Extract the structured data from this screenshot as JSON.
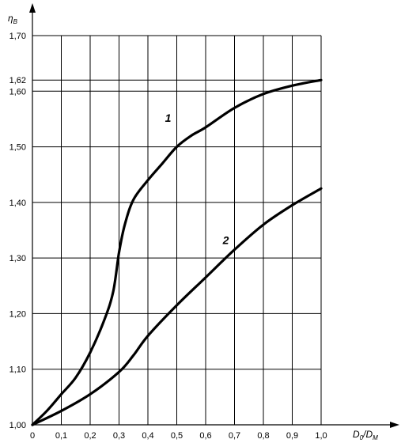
{
  "chart_data": {
    "type": "line",
    "ylabel_main": "η",
    "ylabel_sub": "B",
    "xlabel_main": "D",
    "xlabel_sub1": "0",
    "xlabel_sep": "/D",
    "xlabel_sub2": "M",
    "xlim": [
      0,
      1.0
    ],
    "ylim": [
      1.0,
      1.7
    ],
    "grid": true,
    "x_ticks": [
      {
        "value": 0,
        "label": "0"
      },
      {
        "value": 0.1,
        "label": "0,1"
      },
      {
        "value": 0.2,
        "label": "0,2"
      },
      {
        "value": 0.3,
        "label": "0,3"
      },
      {
        "value": 0.4,
        "label": "0,4"
      },
      {
        "value": 0.5,
        "label": "0,5"
      },
      {
        "value": 0.6,
        "label": "0,6"
      },
      {
        "value": 0.7,
        "label": "0,7"
      },
      {
        "value": 0.8,
        "label": "0,8"
      },
      {
        "value": 0.9,
        "label": "0,9"
      },
      {
        "value": 1.0,
        "label": "1,0"
      }
    ],
    "y_ticks": [
      {
        "value": 1.0,
        "label": "1,00"
      },
      {
        "value": 1.1,
        "label": "1,10"
      },
      {
        "value": 1.2,
        "label": "1,20"
      },
      {
        "value": 1.3,
        "label": "1,30"
      },
      {
        "value": 1.4,
        "label": "1,40"
      },
      {
        "value": 1.5,
        "label": "1,50"
      },
      {
        "value": 1.6,
        "label": "1,60"
      },
      {
        "value": 1.62,
        "label": "1,62"
      },
      {
        "value": 1.7,
        "label": "1,70"
      }
    ],
    "series": [
      {
        "name": "1",
        "label_at": [
          0.47,
          1.545
        ],
        "points": [
          [
            0.0,
            1.0
          ],
          [
            0.05,
            1.025
          ],
          [
            0.1,
            1.055
          ],
          [
            0.15,
            1.085
          ],
          [
            0.2,
            1.13
          ],
          [
            0.25,
            1.19
          ],
          [
            0.28,
            1.24
          ],
          [
            0.3,
            1.31
          ],
          [
            0.32,
            1.36
          ],
          [
            0.35,
            1.405
          ],
          [
            0.4,
            1.44
          ],
          [
            0.45,
            1.47
          ],
          [
            0.5,
            1.5
          ],
          [
            0.55,
            1.52
          ],
          [
            0.6,
            1.535
          ],
          [
            0.7,
            1.57
          ],
          [
            0.8,
            1.595
          ],
          [
            0.9,
            1.61
          ],
          [
            1.0,
            1.62
          ]
        ]
      },
      {
        "name": "2",
        "label_at": [
          0.67,
          1.325
        ],
        "points": [
          [
            0.0,
            1.0
          ],
          [
            0.1,
            1.025
          ],
          [
            0.2,
            1.055
          ],
          [
            0.3,
            1.095
          ],
          [
            0.35,
            1.125
          ],
          [
            0.4,
            1.16
          ],
          [
            0.5,
            1.215
          ],
          [
            0.6,
            1.265
          ],
          [
            0.7,
            1.315
          ],
          [
            0.8,
            1.36
          ],
          [
            0.9,
            1.395
          ],
          [
            1.0,
            1.425
          ]
        ]
      }
    ]
  }
}
